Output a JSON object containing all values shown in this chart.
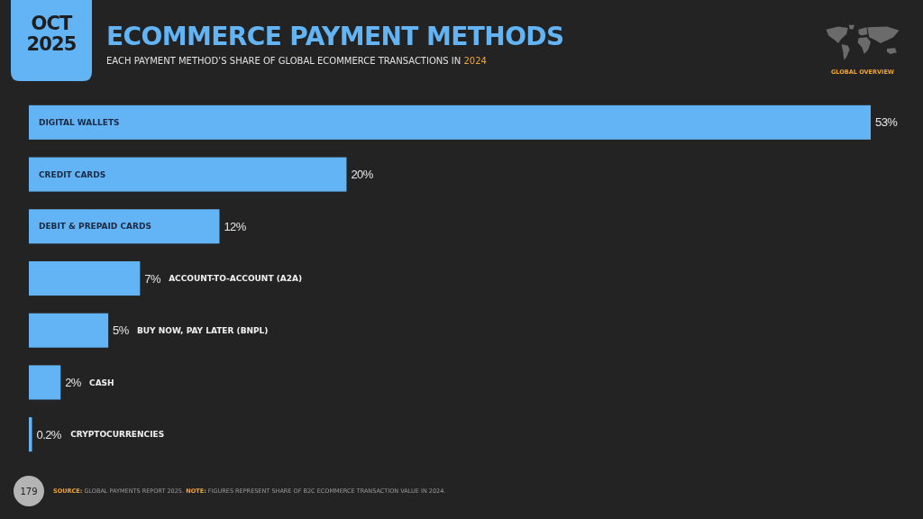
{
  "chart_data": {
    "type": "bar",
    "orientation": "horizontal",
    "title": "ECOMMERCE PAYMENT METHODS",
    "subtitle": "EACH PAYMENT METHOD’S SHARE OF GLOBAL ECOMMERCE TRANSACTIONS IN 2024",
    "categories": [
      "DIGITAL WALLETS",
      "CREDIT CARDS",
      "DEBIT & PREPAID CARDS",
      "ACCOUNT-TO-ACCOUNT (A2A)",
      "BUY NOW, PAY LATER (BNPL)",
      "CASH",
      "CRYPTOCURRENCIES"
    ],
    "values": [
      53,
      20,
      12,
      7,
      5,
      2,
      0.2
    ],
    "value_labels": [
      "53%",
      "20%",
      "12%",
      "7%",
      "5%",
      "2%",
      "0.2%"
    ],
    "color": "#62b4f5",
    "annotations": [
      "OCT 2025",
      "GLOBAL OVERVIEW",
      "179",
      "SOURCE: GLOBAL PAYMENTS REPORT 2025. NOTE: FIGURES REPRESENT SHARE OF B2C ECOMMERCE TRANSACTION VALUE IN 2024."
    ]
  }
}
